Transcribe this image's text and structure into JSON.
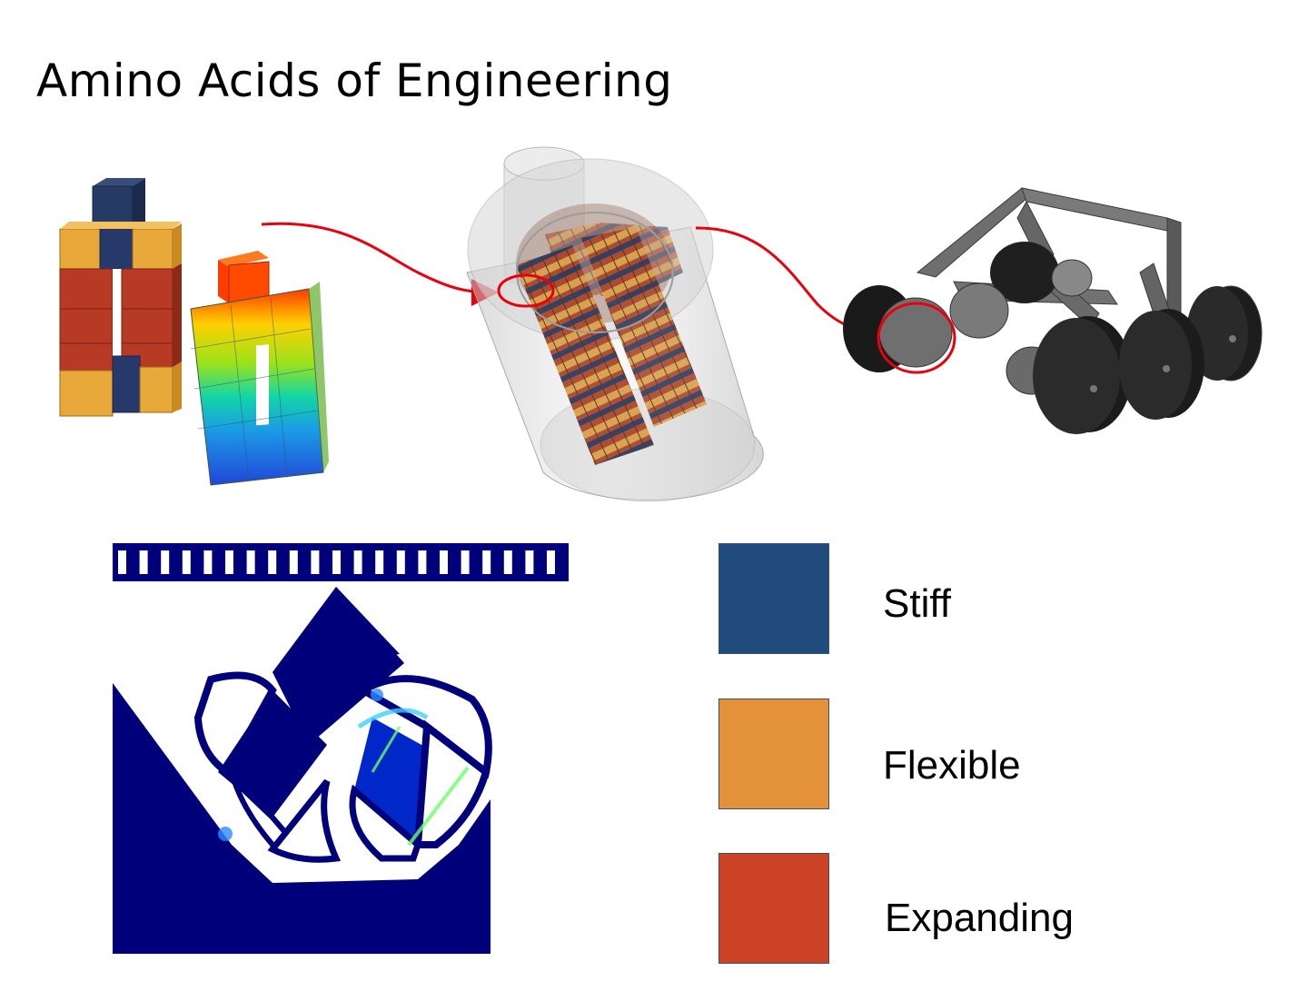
{
  "slide": {
    "title": "Amino Acids of Engineering"
  },
  "legend": [
    {
      "label": "Stiff",
      "color": "#224b7d"
    },
    {
      "label": "Flexible",
      "color": "#e4913b"
    },
    {
      "label": "Expanding",
      "color": "#cb4227"
    }
  ],
  "colors": {
    "arrow": "#e8000b",
    "fea_background": "#00007a",
    "cylinder": "#d9d9d9",
    "robot_body": "#6a6a6a",
    "wheel": "#1e1e1e"
  }
}
